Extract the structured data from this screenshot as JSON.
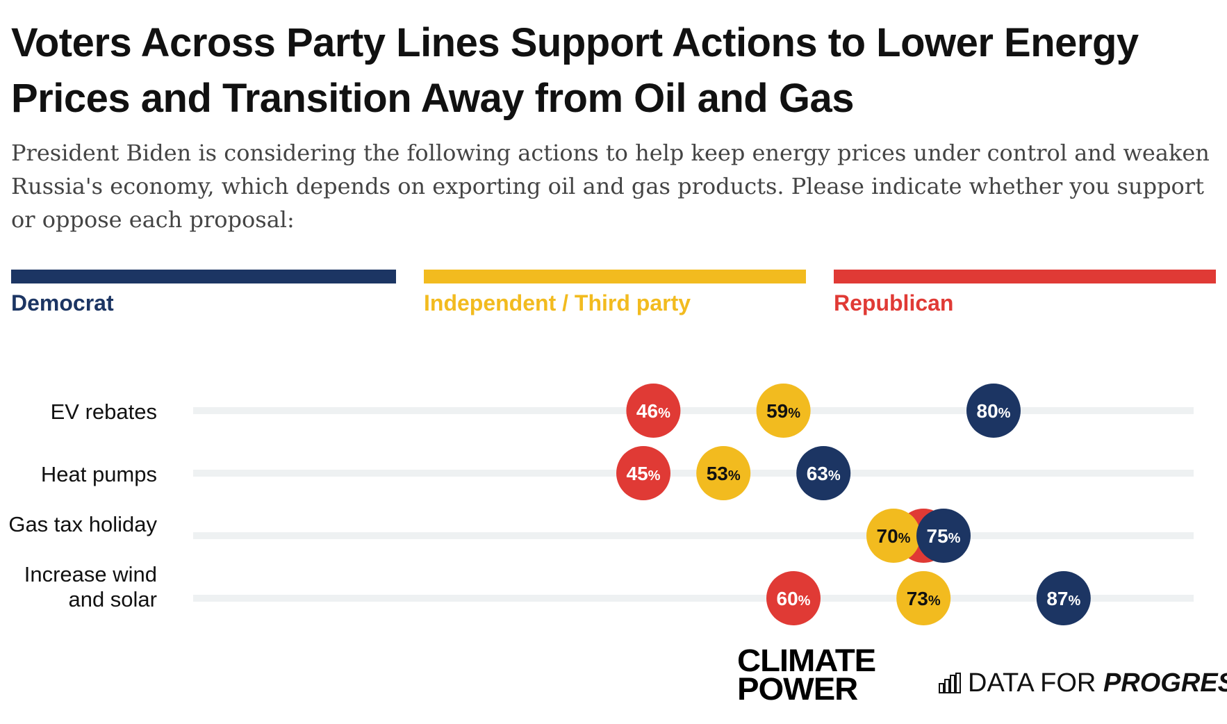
{
  "header": {
    "title": "Voters Across Party Lines Support Actions to Lower Energy Prices and Transition Away from Oil and Gas",
    "subtitle": "President Biden is considering the following actions to help keep energy prices under control and weaken Russia's economy, which depends on exporting oil and gas products. Please indicate whether you support or oppose each proposal:"
  },
  "legend": {
    "democrat": "Democrat",
    "independent": "Independent / Third party",
    "republican": "Republican"
  },
  "colors": {
    "democrat": "#1c3563",
    "independent": "#f2bb1f",
    "republican": "#e03a35",
    "track": "#eef1f2"
  },
  "chart_data": {
    "type": "dot",
    "value_suffix": "%",
    "x_range": [
      0,
      100
    ],
    "series": [
      "Republican",
      "Independent / Third party",
      "Democrat"
    ],
    "rows": [
      {
        "label": "EV rebates",
        "values": {
          "Democrat": 80,
          "Independent / Third party": 59,
          "Republican": 46
        }
      },
      {
        "label": "Heat pumps",
        "values": {
          "Democrat": 63,
          "Independent / Third party": 53,
          "Republican": 45
        }
      },
      {
        "label": "Gas tax holiday",
        "values": {
          "Democrat": 75,
          "Independent / Third party": 70,
          "Republican": 73
        }
      },
      {
        "label": "Increase wind and solar",
        "values": {
          "Democrat": 87,
          "Independent / Third party": 73,
          "Republican": 60
        }
      }
    ]
  },
  "branding": {
    "climate_power_line1": "CLIMATE",
    "climate_power_line2": "POWER",
    "dfp_light": "DATA FOR ",
    "dfp_bold": "PROGRESS"
  }
}
